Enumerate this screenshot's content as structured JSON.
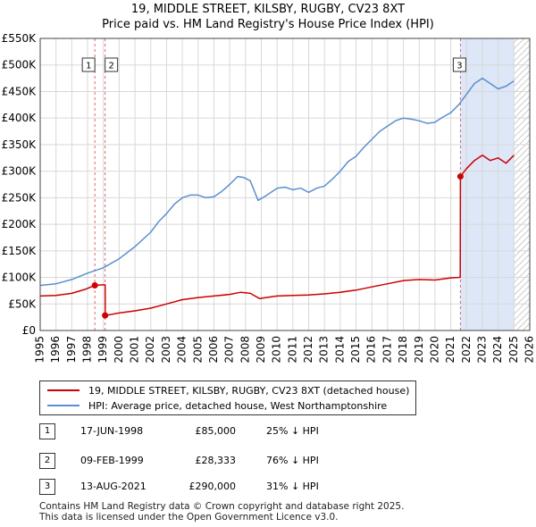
{
  "header": {
    "title_line1": "19, MIDDLE STREET, KILSBY, RUGBY, CV23 8XT",
    "title_line2": "Price paid vs. HM Land Registry's House Price Index (HPI)"
  },
  "legend": {
    "red_label": "19, MIDDLE STREET, KILSBY, RUGBY, CV23 8XT (detached house)",
    "blue_label": "HPI: Average price, detached house, West Northamptonshire"
  },
  "sales": [
    {
      "num": "1",
      "date": "17-JUN-1998",
      "price": "£85,000",
      "hpi": "25% ↓ HPI"
    },
    {
      "num": "2",
      "date": "09-FEB-1999",
      "price": "£28,333",
      "hpi": "76% ↓ HPI"
    },
    {
      "num": "3",
      "date": "13-AUG-2021",
      "price": "£290,000",
      "hpi": "31% ↓ HPI"
    }
  ],
  "footer": {
    "line1": "Contains HM Land Registry data © Crown copyright and database right 2025.",
    "line2": "This data is licensed under the Open Government Licence v3.0."
  },
  "colors": {
    "red": "#cc0000",
    "blue": "#5a8fcf",
    "shade": "#dde7f7",
    "grid": "#d8d8d8"
  },
  "chart_data": {
    "type": "line",
    "title": "19, MIDDLE STREET, KILSBY, RUGBY, CV23 8XT",
    "subtitle": "Price paid vs. HM Land Registry's House Price Index (HPI)",
    "xlabel": "",
    "ylabel": "",
    "xlim": [
      1995,
      2026
    ],
    "ylim": [
      0,
      550000
    ],
    "grid": true,
    "legend_position": "bottom",
    "x_ticks": [
      1995,
      1996,
      1997,
      1998,
      1999,
      2000,
      2001,
      2002,
      2003,
      2004,
      2005,
      2006,
      2007,
      2008,
      2009,
      2010,
      2011,
      2012,
      2013,
      2014,
      2015,
      2016,
      2017,
      2018,
      2019,
      2020,
      2021,
      2022,
      2023,
      2024,
      2025,
      2026
    ],
    "y_ticks": [
      {
        "value": 0,
        "label": "£0"
      },
      {
        "value": 50000,
        "label": "£50K"
      },
      {
        "value": 100000,
        "label": "£100K"
      },
      {
        "value": 150000,
        "label": "£150K"
      },
      {
        "value": 200000,
        "label": "£200K"
      },
      {
        "value": 250000,
        "label": "£250K"
      },
      {
        "value": 300000,
        "label": "£300K"
      },
      {
        "value": 350000,
        "label": "£350K"
      },
      {
        "value": 400000,
        "label": "£400K"
      },
      {
        "value": 450000,
        "label": "£450K"
      },
      {
        "value": 500000,
        "label": "£500K"
      },
      {
        "value": 550000,
        "label": "£550K"
      }
    ],
    "series": [
      {
        "name": "19, MIDDLE STREET, KILSBY, RUGBY, CV23 8XT (detached house)",
        "color": "#cc0000",
        "x": [
          1995.0,
          1996.0,
          1997.0,
          1997.9,
          1998.45,
          1998.46,
          1998.99,
          1999.11,
          1999.12,
          2000.0,
          2001.0,
          2002.0,
          2003.0,
          2004.0,
          2005.0,
          2006.0,
          2007.0,
          2007.7,
          2008.3,
          2008.9,
          2009.3,
          2010.0,
          2011.0,
          2012.0,
          2013.0,
          2014.0,
          2015.0,
          2016.0,
          2017.0,
          2018.0,
          2019.0,
          2020.0,
          2021.0,
          2021.6,
          2021.61,
          2022.0,
          2022.5,
          2023.0,
          2023.5,
          2024.0,
          2024.5,
          2025.0
        ],
        "y": [
          65000,
          66000,
          70000,
          78000,
          85000,
          85000,
          86000,
          86000,
          28333,
          33000,
          37000,
          42000,
          50000,
          58000,
          62000,
          65000,
          68000,
          72000,
          70000,
          60000,
          62000,
          65000,
          66000,
          67000,
          69000,
          72000,
          76000,
          82000,
          88000,
          94000,
          96000,
          95000,
          99000,
          100000,
          290000,
          305000,
          320000,
          330000,
          320000,
          325000,
          315000,
          330000
        ]
      },
      {
        "name": "HPI: Average price, detached house, West Northamptonshire",
        "color": "#5a8fcf",
        "x": [
          1995.0,
          1996.0,
          1997.0,
          1998.0,
          1999.0,
          2000.0,
          2001.0,
          2002.0,
          2002.5,
          2003.0,
          2003.5,
          2004.0,
          2004.5,
          2005.0,
          2005.5,
          2006.0,
          2006.5,
          2007.0,
          2007.5,
          2007.9,
          2008.3,
          2008.8,
          2009.2,
          2010.0,
          2010.5,
          2011.0,
          2011.5,
          2012.0,
          2012.5,
          2013.0,
          2013.5,
          2014.0,
          2014.5,
          2015.0,
          2015.5,
          2016.0,
          2016.5,
          2017.0,
          2017.5,
          2018.0,
          2018.5,
          2019.0,
          2019.5,
          2020.0,
          2020.5,
          2021.0,
          2021.5,
          2022.0,
          2022.5,
          2023.0,
          2023.5,
          2024.0,
          2024.5,
          2025.0
        ],
        "y": [
          85000,
          88000,
          96000,
          108000,
          118000,
          135000,
          158000,
          185000,
          205000,
          220000,
          238000,
          250000,
          255000,
          255000,
          250000,
          252000,
          262000,
          275000,
          290000,
          288000,
          282000,
          245000,
          252000,
          268000,
          270000,
          265000,
          268000,
          260000,
          268000,
          272000,
          285000,
          300000,
          318000,
          328000,
          345000,
          360000,
          375000,
          385000,
          395000,
          400000,
          398000,
          395000,
          390000,
          392000,
          402000,
          410000,
          425000,
          445000,
          465000,
          475000,
          465000,
          455000,
          460000,
          470000
        ]
      }
    ],
    "sales_markers": [
      {
        "label": "1",
        "x": 1998.46,
        "y": 85000
      },
      {
        "label": "2",
        "x": 1999.11,
        "y": 28333
      },
      {
        "label": "3",
        "x": 2021.61,
        "y": 290000
      }
    ],
    "shaded_region": [
      2021.61,
      2025.0
    ]
  }
}
